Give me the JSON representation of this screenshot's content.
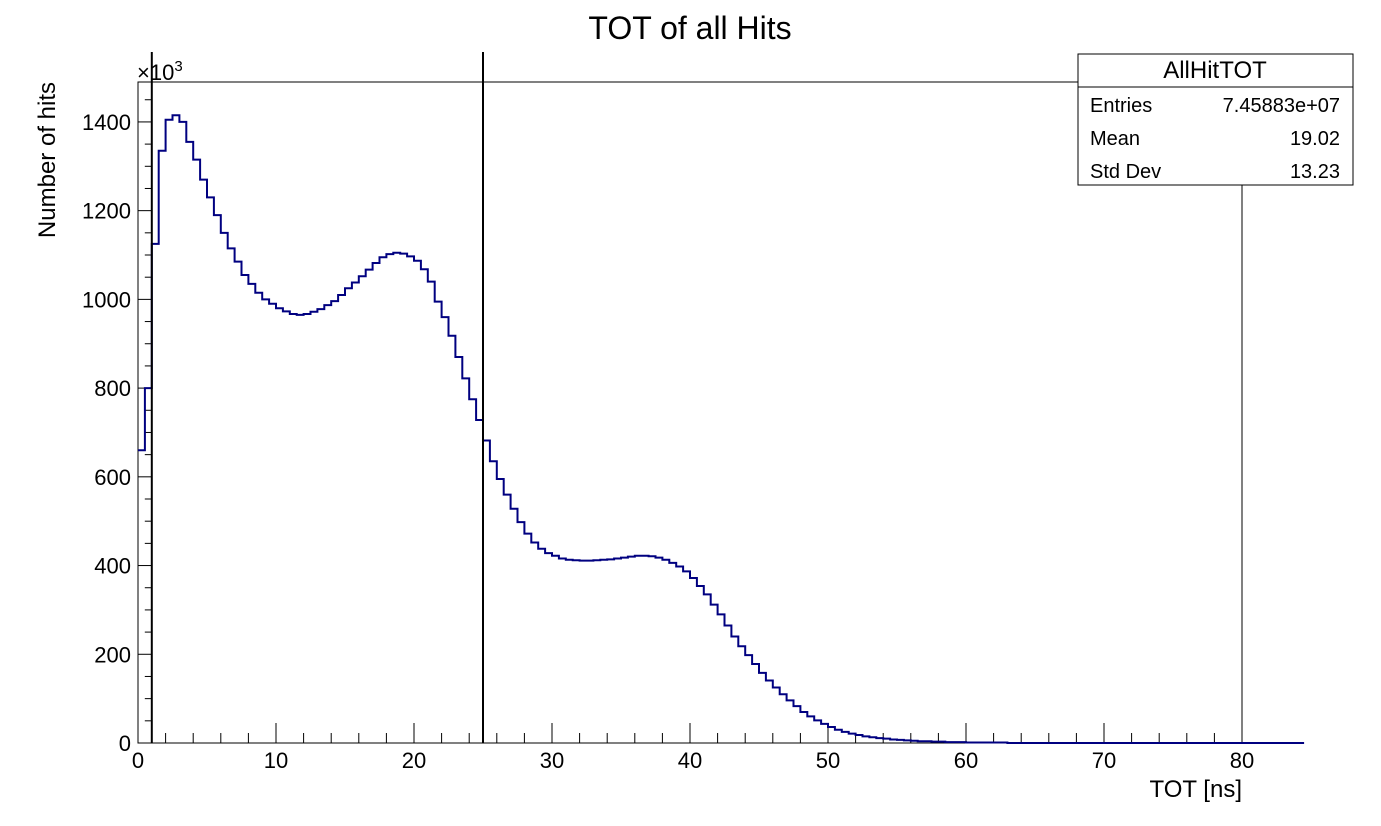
{
  "chart_data": {
    "type": "bar",
    "title": "TOT of all Hits",
    "xlabel": "TOT [ns]",
    "ylabel": "Number of hits",
    "y_multiplier": "×10",
    "y_multiplier_exp": "3",
    "xlim": [
      0,
      80
    ],
    "ylim": [
      0,
      1490
    ],
    "x_ticks": [
      0,
      10,
      20,
      30,
      40,
      50,
      60,
      70,
      80
    ],
    "y_ticks": [
      0,
      200,
      400,
      600,
      800,
      1000,
      1200,
      1400
    ],
    "x_tick_labels": [
      "0",
      "10",
      "20",
      "30",
      "40",
      "50",
      "60",
      "70",
      "80"
    ],
    "y_tick_labels": [
      "0",
      "200",
      "400",
      "600",
      "800",
      "1000",
      "1200",
      "1400"
    ],
    "cut_line_x": 25,
    "line_color": "#000080",
    "bin_width": 0.5,
    "bin_start": 0,
    "values": [
      660,
      800,
      1125,
      1335,
      1405,
      1415,
      1400,
      1355,
      1315,
      1270,
      1230,
      1190,
      1150,
      1115,
      1085,
      1055,
      1035,
      1015,
      1000,
      990,
      980,
      973,
      967,
      965,
      967,
      972,
      978,
      987,
      996,
      1010,
      1025,
      1038,
      1052,
      1067,
      1082,
      1095,
      1102,
      1105,
      1103,
      1097,
      1087,
      1068,
      1040,
      995,
      960,
      918,
      870,
      822,
      775,
      728,
      682,
      635,
      595,
      560,
      528,
      498,
      472,
      452,
      438,
      428,
      422,
      416,
      413,
      412,
      411,
      411,
      412,
      413,
      414,
      416,
      418,
      420,
      422,
      422,
      421,
      418,
      413,
      406,
      398,
      387,
      372,
      354,
      335,
      312,
      290,
      265,
      240,
      218,
      198,
      178,
      158,
      141,
      125,
      110,
      96,
      83,
      70,
      60,
      51,
      43,
      36,
      30,
      25,
      21,
      18,
      15,
      13,
      11,
      10,
      8,
      7,
      6,
      5,
      4,
      4,
      3,
      3,
      2,
      2,
      2,
      1,
      1,
      1,
      1,
      1,
      1,
      0,
      0,
      0,
      0,
      0,
      0,
      0,
      0,
      0,
      0,
      0,
      0,
      0,
      0,
      0,
      0,
      0,
      0,
      0,
      0,
      0,
      0,
      0,
      0,
      0,
      0,
      0,
      0,
      0,
      0,
      0,
      0,
      0,
      0,
      0,
      0,
      0,
      0,
      0,
      0,
      0,
      0,
      0
    ]
  },
  "stats_box": {
    "name": "AllHitTOT",
    "rows": [
      {
        "label": "Entries",
        "value": "7.45883e+07"
      },
      {
        "label": "Mean",
        "value": "19.02"
      },
      {
        "label": "Std Dev",
        "value": "13.23"
      }
    ]
  }
}
